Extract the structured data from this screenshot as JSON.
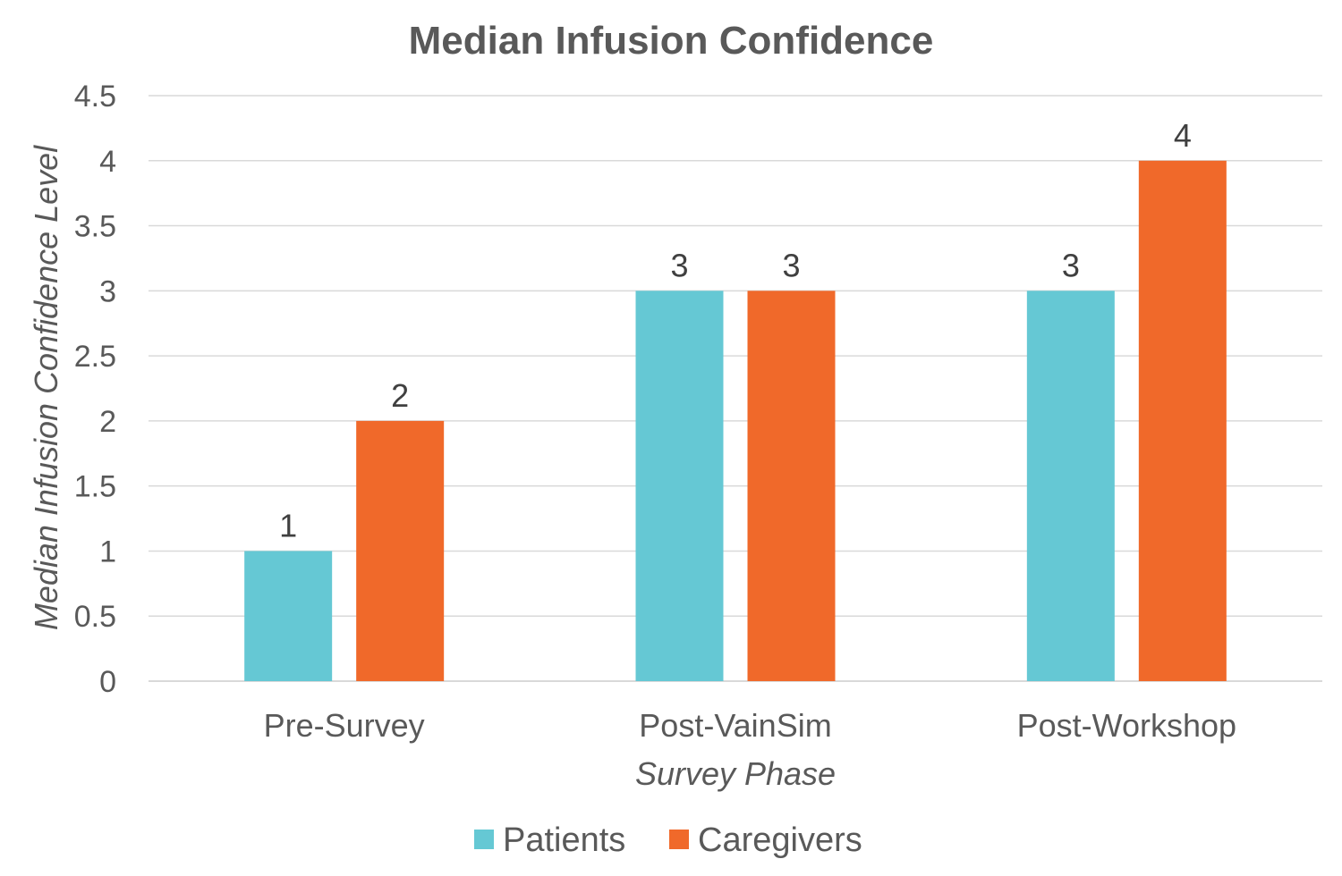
{
  "chart_data": {
    "type": "bar",
    "title": "Median Infusion Confidence",
    "xlabel": "Survey Phase",
    "ylabel": "Median Infusion Confidence Level",
    "categories": [
      "Pre-Survey",
      "Post-VainSim",
      "Post-Workshop"
    ],
    "series": [
      {
        "name": "Patients",
        "values": [
          1,
          3,
          3
        ],
        "color": "#65C8D4"
      },
      {
        "name": "Caregivers",
        "values": [
          2,
          3,
          4
        ],
        "color": "#F0692A"
      }
    ],
    "ylim": [
      0,
      4.5
    ],
    "yticks": [
      "0",
      "0.5",
      "1",
      "1.5",
      "2",
      "2.5",
      "3",
      "3.5",
      "4",
      "4.5"
    ],
    "grid": true,
    "data_labels": true,
    "legend_position": "bottom"
  }
}
